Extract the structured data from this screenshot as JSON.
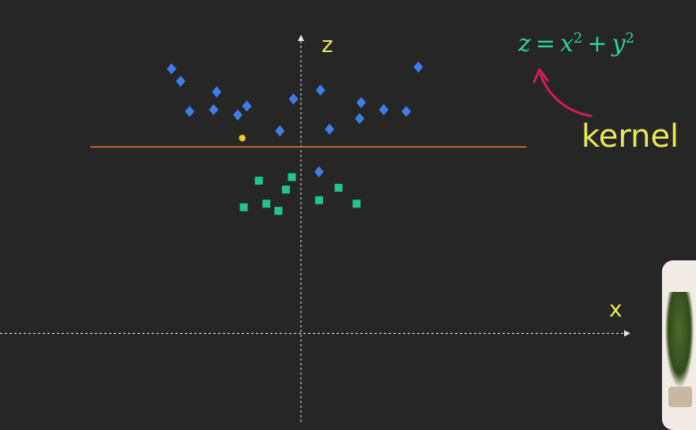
{
  "chart_data": {
    "type": "scatter",
    "title": "",
    "xlabel": "x",
    "ylabel": "z",
    "xlim": [
      -10,
      11
    ],
    "ylim": [
      -5,
      17
    ],
    "grid": false,
    "axes_style": "dashed white with arrowheads",
    "series": [
      {
        "marker": "diamond",
        "color": "#3f7ee8",
        "points": [
          [
            -4.3,
            14.9
          ],
          [
            -4.0,
            14.2
          ],
          [
            -2.8,
            13.6
          ],
          [
            -3.7,
            12.5
          ],
          [
            -2.9,
            12.6
          ],
          [
            -2.1,
            12.3
          ],
          [
            -1.8,
            12.8
          ],
          [
            -0.7,
            11.4
          ],
          [
            -0.25,
            13.2
          ],
          [
            0.65,
            13.7
          ],
          [
            0.95,
            11.5
          ],
          [
            2.0,
            13.0
          ],
          [
            1.95,
            12.1
          ],
          [
            2.75,
            12.6
          ],
          [
            3.5,
            12.5
          ],
          [
            3.9,
            15.0
          ],
          [
            0.6,
            9.1
          ]
        ]
      },
      {
        "marker": "square",
        "color": "#22c493",
        "points": [
          [
            -1.4,
            8.6
          ],
          [
            -0.3,
            8.8
          ],
          [
            -0.5,
            8.1
          ],
          [
            -1.9,
            7.1
          ],
          [
            -1.15,
            7.3
          ],
          [
            -0.75,
            6.9
          ],
          [
            0.6,
            7.5
          ],
          [
            1.25,
            8.2
          ],
          [
            1.85,
            7.3
          ]
        ]
      },
      {
        "marker": "circle",
        "color": "#f0d030",
        "points": [
          [
            -1.95,
            11.0
          ]
        ]
      }
    ],
    "decision_boundary": {
      "type": "horizontal line",
      "z": 10.5,
      "x_range": [
        -7.0,
        7.5
      ],
      "color": "#e8783a"
    }
  },
  "labels": {
    "z_axis": "z",
    "x_axis": "x",
    "kernel": "kernel"
  },
  "formula": {
    "lhs": "z",
    "eq": "=",
    "x": "x",
    "plus": "+",
    "y": "y",
    "exp": "2"
  },
  "colors": {
    "background": "#262626",
    "label": "#e8e85a",
    "formula": "#2fd3a0",
    "arrow": "#d81a5c"
  }
}
